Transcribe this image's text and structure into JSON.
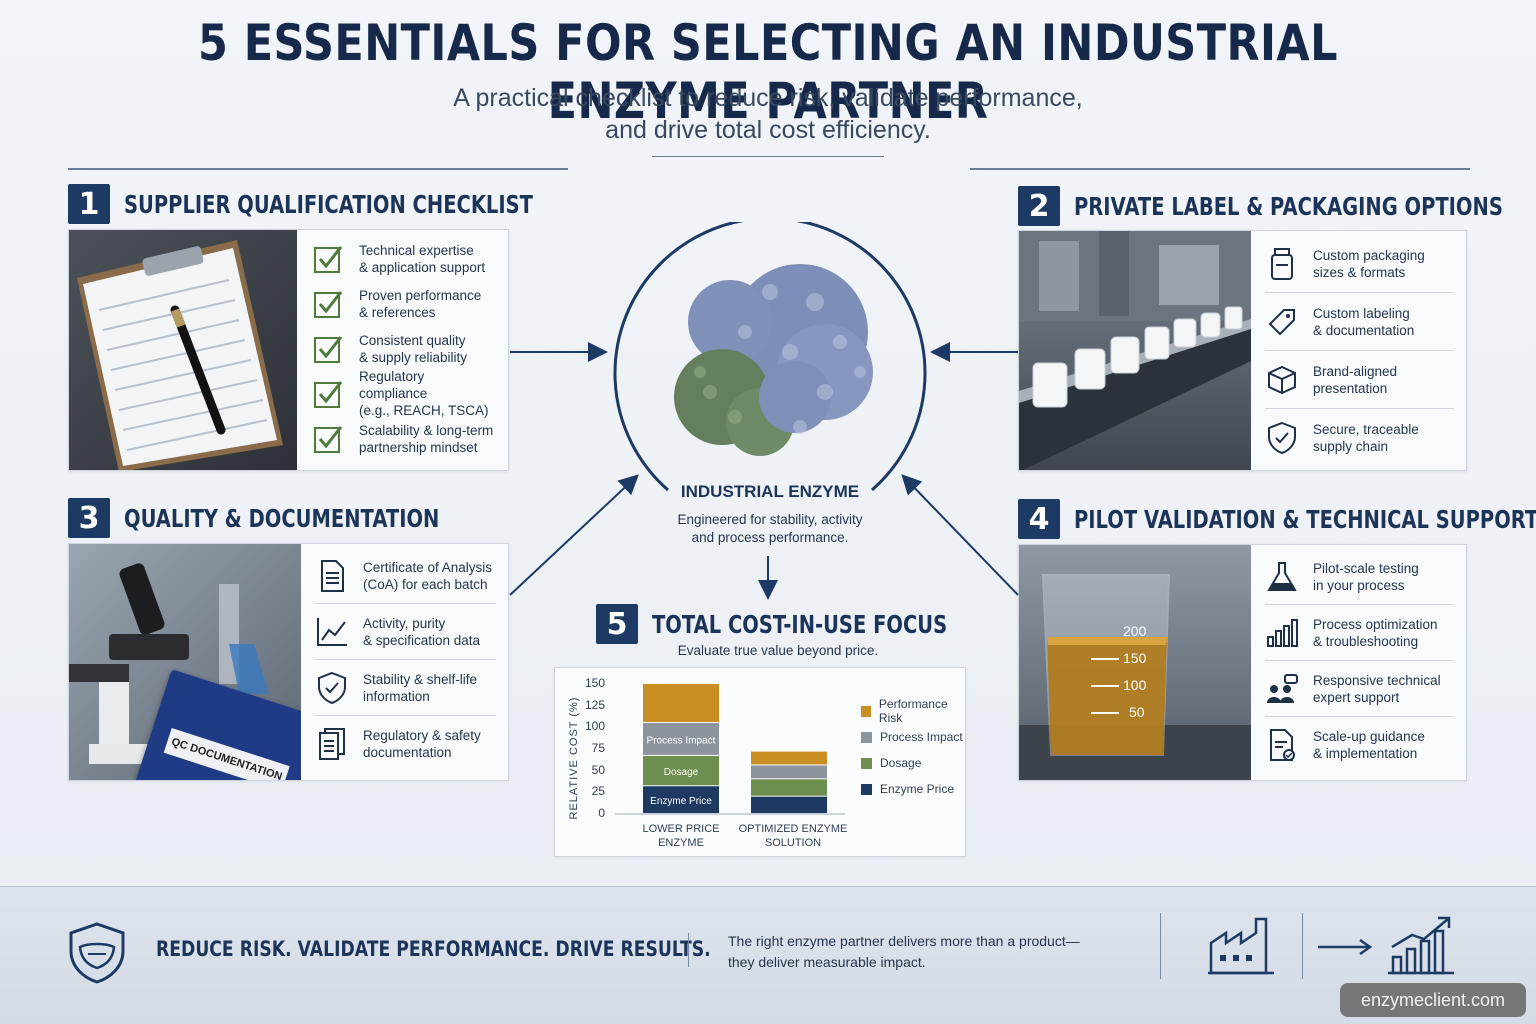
{
  "header": {
    "title": "5 ESSENTIALS FOR SELECTING AN INDUSTRIAL ENZYME PARTNER",
    "subtitle_line1": "A practical checklist to reduce risk, validate performance,",
    "subtitle_line2": "and drive total cost efficiency."
  },
  "center": {
    "label": "INDUSTRIAL ENZYME",
    "desc_line1": "Engineered for stability, activity",
    "desc_line2": "and process performance."
  },
  "sections": [
    {
      "num": "1",
      "title": "SUPPLIER QUALIFICATION CHECKLIST",
      "items": [
        {
          "icon": "checkbox-icon",
          "text": "Technical expertise\n& application support"
        },
        {
          "icon": "checkbox-icon",
          "text": "Proven performance\n& references"
        },
        {
          "icon": "checkbox-icon",
          "text": "Consistent quality\n& supply reliability"
        },
        {
          "icon": "checkbox-icon",
          "text": "Regulatory compliance\n(e.g., REACH, TSCA)"
        },
        {
          "icon": "checkbox-icon",
          "text": "Scalability & long-term\npartnership mindset"
        }
      ]
    },
    {
      "num": "2",
      "title": "PRIVATE LABEL & PACKAGING OPTIONS",
      "items": [
        {
          "icon": "bottle-icon",
          "text": "Custom packaging\nsizes & formats"
        },
        {
          "icon": "tag-icon",
          "text": "Custom labeling\n& documentation"
        },
        {
          "icon": "box-icon",
          "text": "Brand-aligned\npresentation"
        },
        {
          "icon": "shield-check-icon",
          "text": "Secure, traceable\nsupply chain"
        }
      ]
    },
    {
      "num": "3",
      "title": "QUALITY & DOCUMENTATION",
      "items": [
        {
          "icon": "document-icon",
          "text": "Certificate of Analysis\n(CoA) for each batch"
        },
        {
          "icon": "line-chart-icon",
          "text": "Activity, purity\n& specification data"
        },
        {
          "icon": "shield-check-icon",
          "text": "Stability & shelf-life\ninformation"
        },
        {
          "icon": "documents-icon",
          "text": "Regulatory & safety\ndocumentation"
        }
      ]
    },
    {
      "num": "4",
      "title": "PILOT VALIDATION & TECHNICAL SUPPORT",
      "items": [
        {
          "icon": "flask-icon",
          "text": "Pilot-scale testing\nin your process"
        },
        {
          "icon": "bar-chart-icon",
          "text": "Process optimization\n& troubleshooting"
        },
        {
          "icon": "experts-icon",
          "text": "Responsive technical\nexpert support"
        },
        {
          "icon": "checklist-doc-icon",
          "text": "Scale-up guidance\n& implementation"
        }
      ]
    },
    {
      "num": "5",
      "title": "TOTAL COST-IN-USE FOCUS",
      "subtitle": "Evaluate true value beyond price."
    }
  ],
  "photos": {
    "binder_label": "QC DOCUMENTATION",
    "beaker_marks": [
      "200",
      "150",
      "100",
      "50"
    ]
  },
  "chart_data": {
    "type": "bar",
    "stacked": true,
    "categories": [
      "LOWER PRICE\nENZYME",
      "OPTIMIZED ENZYME\nSOLUTION"
    ],
    "series": [
      {
        "name": "Enzyme Price",
        "color": "#1e3a63",
        "values": [
          32,
          20
        ]
      },
      {
        "name": "Dosage",
        "color": "#6d8e4e",
        "values": [
          35,
          20
        ]
      },
      {
        "name": "Process Impact",
        "color": "#8c959e",
        "values": [
          38,
          16
        ]
      },
      {
        "name": "Performance Risk",
        "color": "#c98f22",
        "values": [
          45,
          16
        ]
      }
    ],
    "ylabel": "RELATIVE COST (%)",
    "yticks": [
      "150",
      "125",
      "100",
      "75",
      "50",
      "25",
      "0"
    ],
    "ylim": [
      0,
      150
    ],
    "legend_position": "right",
    "legend": [
      "Performance Risk",
      "Process Impact",
      "Dosage",
      "Enzyme Price"
    ]
  },
  "footer": {
    "tagline": "REDUCE RISK. VALIDATE PERFORMANCE. DRIVE RESULTS.",
    "message_line1": "The right enzyme partner delivers more than a product—",
    "message_line2": "they deliver measurable impact.",
    "watermark": "enzymeclient.com"
  },
  "colors": {
    "navy": "#1c3a63",
    "background": "#eef2f6",
    "check_green": "#4f7a3c"
  }
}
